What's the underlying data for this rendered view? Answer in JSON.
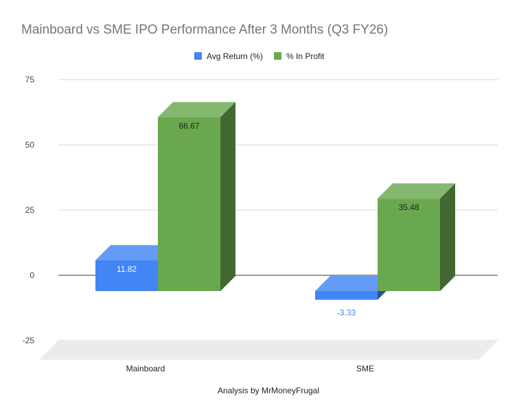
{
  "chart_data": {
    "type": "bar",
    "title": "Mainboard vs SME IPO Performance After 3 Months (Q3 FY26)",
    "xlabel": "Analysis by MrMoneyFrugal",
    "ylabel": "",
    "categories": [
      "Mainboard",
      "SME"
    ],
    "series": [
      {
        "name": "Avg Return (%)",
        "values": [
          11.82,
          -3.33
        ],
        "labels": [
          "11.82",
          "-3.33"
        ]
      },
      {
        "name": "% In Profit",
        "values": [
          66.67,
          35.48
        ],
        "labels": [
          "66.67",
          "35.48"
        ]
      }
    ],
    "ylim": [
      -25,
      75
    ],
    "yticks": [
      "75",
      "50",
      "25",
      "0",
      "-25"
    ],
    "grid": true,
    "legend": "top-center",
    "style": "3d",
    "colors": {
      "series": [
        "#4285f4",
        "#6aa84f"
      ],
      "label": [
        "#ffffff",
        "#222222"
      ],
      "negative_label": "#4285f4"
    }
  }
}
